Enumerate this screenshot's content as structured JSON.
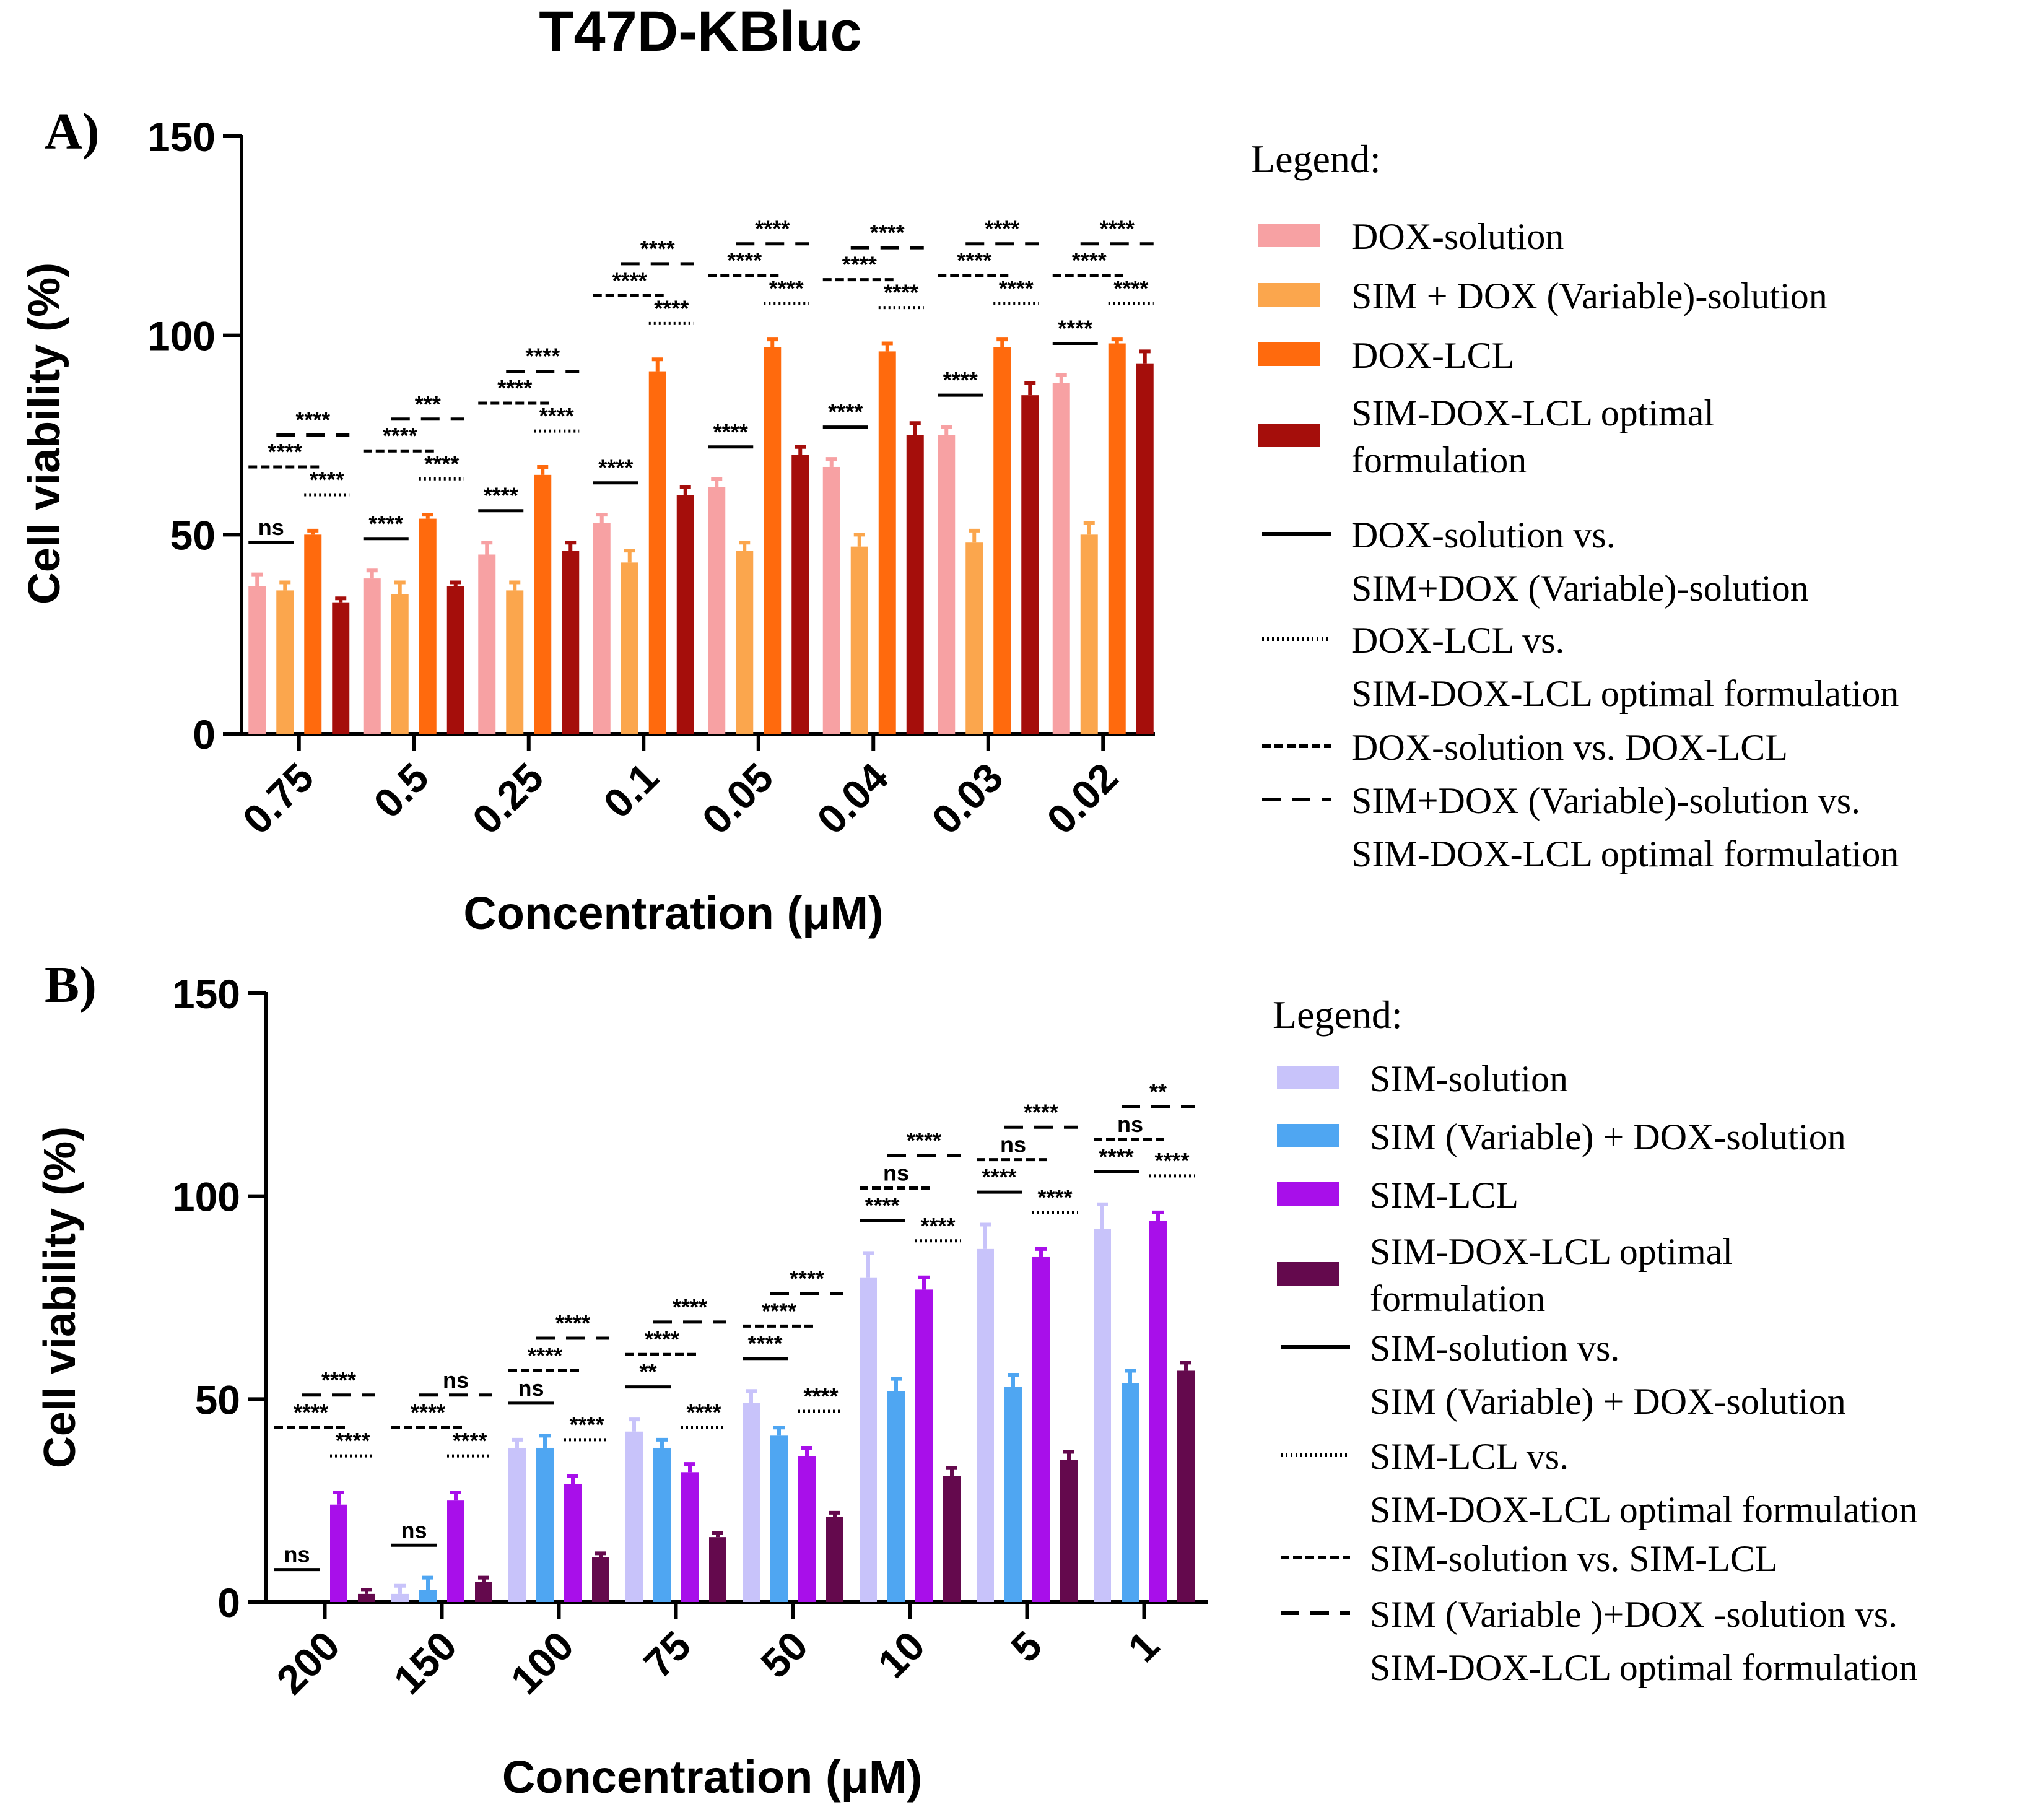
{
  "figure_title": "T47D-KBluc",
  "colors": {
    "axis": "#000000",
    "A_series": [
      "#F7A1A3",
      "#FBA64D",
      "#FF6A0D",
      "#A50E0B"
    ],
    "B_series": [
      "#C8C3FA",
      "#4FA6F2",
      "#A80FEA",
      "#64094D"
    ]
  },
  "chart_data": [
    {
      "panel": "A)",
      "type": "bar",
      "xlabel": "Concentration (μM)",
      "ylabel": "Cell viability (%)",
      "ylim": [
        0,
        150
      ],
      "yticks": [
        "0",
        "50",
        "100",
        "150"
      ],
      "categories": [
        "0.75",
        "0.5",
        "0.25",
        "0.1",
        "0.05",
        "0.04",
        "0.03",
        "0.02"
      ],
      "series": [
        {
          "name": "DOX-solution",
          "values": [
            37,
            39,
            45,
            53,
            62,
            67,
            75,
            88
          ],
          "errors": [
            3,
            2,
            3,
            2,
            2,
            2,
            2,
            2
          ]
        },
        {
          "name": "SIM + DOX (Variable)-solution",
          "values": [
            36,
            35,
            36,
            43,
            46,
            47,
            48,
            50
          ],
          "errors": [
            2,
            3,
            2,
            3,
            2,
            3,
            3,
            3
          ]
        },
        {
          "name": "DOX-LCL",
          "values": [
            50,
            54,
            65,
            91,
            97,
            96,
            97,
            98
          ],
          "errors": [
            1,
            1,
            2,
            3,
            2,
            2,
            2,
            1
          ]
        },
        {
          "name": "SIM-DOX-LCL optimal formulation",
          "values": [
            33,
            37,
            46,
            60,
            70,
            75,
            85,
            93
          ],
          "errors": [
            1,
            1,
            2,
            2,
            2,
            3,
            3,
            3
          ]
        }
      ],
      "significance": [
        {
          "solid": "ns",
          "dotted": "****",
          "dashed": "****",
          "longdash": "****"
        },
        {
          "solid": "****",
          "dotted": "****",
          "dashed": "****",
          "longdash": "***"
        },
        {
          "solid": "****",
          "dotted": "****",
          "dashed": "****",
          "longdash": "****"
        },
        {
          "solid": "****",
          "dotted": "****",
          "dashed": "****",
          "longdash": "****"
        },
        {
          "solid": "****",
          "dotted": "****",
          "dashed": "****",
          "longdash": "****"
        },
        {
          "solid": "****",
          "dotted": "****",
          "dashed": "****",
          "longdash": "****"
        },
        {
          "solid": "****",
          "dotted": "****",
          "dashed": "****",
          "longdash": "****"
        },
        {
          "solid": "****",
          "dotted": "****",
          "dashed": "****",
          "longdash": "****"
        }
      ],
      "legend": {
        "title": "Legend:",
        "swatches": [
          {
            "lines": [
              "DOX-solution"
            ]
          },
          {
            "lines": [
              "SIM + DOX (Variable)-solution"
            ]
          },
          {
            "lines": [
              "DOX-LCL"
            ]
          },
          {
            "lines": [
              "SIM-DOX-LCL optimal",
              "formulation"
            ]
          }
        ],
        "lines": [
          {
            "style": "solid",
            "lines": [
              "DOX-solution  vs.",
              "SIM+DOX (Variable)-solution"
            ]
          },
          {
            "style": "dotted",
            "lines": [
              "DOX-LCL vs.",
              "SIM-DOX-LCL optimal formulation"
            ]
          },
          {
            "style": "dashed",
            "lines": [
              "DOX-solution vs. DOX-LCL"
            ]
          },
          {
            "style": "longdash",
            "lines": [
              "SIM+DOX (Variable)-solution vs.",
              "SIM-DOX-LCL optimal formulation"
            ]
          }
        ]
      }
    },
    {
      "panel": "B)",
      "type": "bar",
      "xlabel": "Concentration (μM)",
      "ylabel": "Cell viability (%)",
      "ylim": [
        0,
        150
      ],
      "yticks": [
        "0",
        "50",
        "100",
        "150"
      ],
      "categories": [
        "200",
        "150",
        "100",
        "75",
        "50",
        "10",
        "5",
        "1"
      ],
      "series": [
        {
          "name": "SIM-solution",
          "values": [
            0,
            2,
            38,
            42,
            49,
            80,
            87,
            92
          ],
          "errors": [
            0,
            2,
            2,
            3,
            3,
            6,
            6,
            6
          ]
        },
        {
          "name": "SIM (Variable) + DOX-solution",
          "values": [
            0,
            3,
            38,
            38,
            41,
            52,
            53,
            54
          ],
          "errors": [
            0,
            3,
            3,
            2,
            2,
            3,
            3,
            3
          ]
        },
        {
          "name": "SIM-LCL",
          "values": [
            24,
            25,
            29,
            32,
            36,
            77,
            85,
            94
          ],
          "errors": [
            3,
            2,
            2,
            2,
            2,
            3,
            2,
            2
          ]
        },
        {
          "name": "SIM-DOX-LCL optimal formulation",
          "values": [
            2,
            5,
            11,
            16,
            21,
            31,
            35,
            57
          ],
          "errors": [
            1,
            1,
            1,
            1,
            1,
            2,
            2,
            2
          ]
        }
      ],
      "significance": [
        {
          "solid": "ns",
          "dotted": "****",
          "dashed": "****",
          "longdash": "****"
        },
        {
          "solid": "ns",
          "dotted": "****",
          "dashed": "****",
          "longdash": "ns"
        },
        {
          "solid": "ns",
          "dotted": "****",
          "dashed": "****",
          "longdash": "****"
        },
        {
          "solid": "**",
          "dotted": "****",
          "dashed": "****",
          "longdash": "****"
        },
        {
          "solid": "****",
          "dotted": "****",
          "dashed": "****",
          "longdash": "****"
        },
        {
          "solid": "****",
          "dotted": "****",
          "dashed": "ns",
          "longdash": "****"
        },
        {
          "solid": "****",
          "dotted": "****",
          "dashed": "ns",
          "longdash": "****"
        },
        {
          "solid": "****",
          "dotted": "****",
          "dashed": "ns",
          "longdash": "**"
        }
      ],
      "legend": {
        "title": "Legend:",
        "swatches": [
          {
            "lines": [
              "SIM-solution"
            ]
          },
          {
            "lines": [
              "SIM (Variable) + DOX-solution"
            ]
          },
          {
            "lines": [
              "SIM-LCL"
            ]
          },
          {
            "lines": [
              "SIM-DOX-LCL optimal",
              "formulation"
            ]
          }
        ],
        "lines": [
          {
            "style": "solid",
            "lines": [
              "SIM-solution  vs.",
              "SIM (Variable) + DOX-solution"
            ]
          },
          {
            "style": "dotted",
            "lines": [
              "SIM-LCL vs.",
              "SIM-DOX-LCL optimal formulation"
            ]
          },
          {
            "style": "dashed",
            "lines": [
              "SIM-solution vs. SIM-LCL"
            ]
          },
          {
            "style": "longdash",
            "lines": [
              "SIM (Variable )+DOX -solution vs.",
              "SIM-DOX-LCL optimal formulation"
            ]
          }
        ]
      }
    }
  ]
}
